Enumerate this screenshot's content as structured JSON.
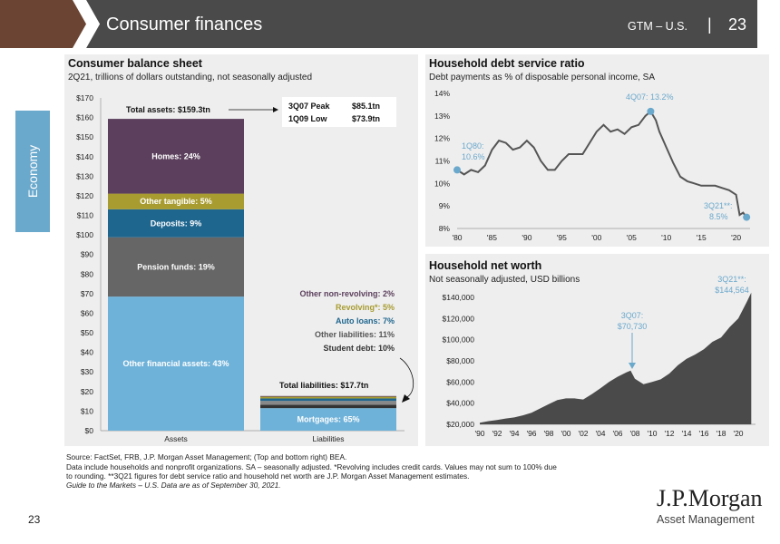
{
  "header": {
    "title": "Consumer finances",
    "series": "GTM – U.S.",
    "separator": "|",
    "page": "23"
  },
  "side_tab": "Economy",
  "colors": {
    "header_bg": "#4a4a4a",
    "header_accent": "#6b4433",
    "homes": "#5b3f5c",
    "other_tangible": "#a89c30",
    "deposits": "#1f668f",
    "pension": "#666666",
    "other_financial": "#6fb2d9",
    "line": "#555555",
    "marker": "#6aa8cc",
    "area": "#4a4a4a"
  },
  "balance": {
    "title": "Consumer balance sheet",
    "subtitle": "2Q21, trillions of dollars outstanding, not seasonally adjusted",
    "total_assets_label": "Total assets: $159.3tn",
    "total_liab_label": "Total liabilities: $17.7tn",
    "peak_label": "3Q07 Peak",
    "peak_value": "$85.1tn",
    "low_label": "1Q09 Low",
    "low_value": "$73.9tn",
    "liab_labels": [
      "Other non-revolving: 2%",
      "Revolving*: 5%",
      "Auto loans: 7%",
      "Other liabilities: 11%",
      "Student debt: 10%"
    ]
  },
  "debt": {
    "title": "Household debt service ratio",
    "subtitle": "Debt payments as % of disposable personal income, SA",
    "ann_1q80": "1Q80:",
    "ann_1q80_val": "10.6%",
    "ann_4q07": "4Q07: 13.2%",
    "ann_3q21": "3Q21**:",
    "ann_3q21_val": "8.5%"
  },
  "networth": {
    "title": "Household net worth",
    "subtitle": "Not seasonally adjusted, USD billions",
    "ann_3q07": "3Q07:",
    "ann_3q07_val": "$70,730",
    "ann_3q21": "3Q21**:",
    "ann_3q21_val": "$144,564"
  },
  "source": {
    "line1": "Source: FactSet, FRB, J.P. Morgan Asset Management; (Top and bottom right) BEA.",
    "line2": "Data include households and nonprofit organizations. SA – seasonally adjusted. *Revolving includes credit cards. Values may not sum to 100% due",
    "line3": "to rounding. **3Q21 figures for debt service ratio and household net worth are J.P. Morgan Asset Management estimates.",
    "line4": "Guide to the Markets – U.S. Data are as of September 30, 2021."
  },
  "logo": {
    "name": "J.P.Morgan",
    "sub": "Asset Management"
  },
  "footer_page": "23",
  "chart_data": [
    {
      "type": "bar",
      "title": "Consumer balance sheet",
      "subtitle": "2Q21, trillions of dollars outstanding, not seasonally adjusted",
      "categories": [
        "Assets",
        "Liabilities"
      ],
      "ylim": [
        0,
        170
      ],
      "yticks": [
        "$0",
        "$10",
        "$20",
        "$30",
        "$40",
        "$50",
        "$60",
        "$70",
        "$80",
        "$90",
        "$100",
        "$110",
        "$120",
        "$130",
        "$140",
        "$150",
        "$160",
        "$170"
      ],
      "assets": [
        {
          "name": "Other financial assets: 43%",
          "value": 68.5
        },
        {
          "name": "Pension funds: 19%",
          "value": 30.3
        },
        {
          "name": "Deposits: 9%",
          "value": 14.3
        },
        {
          "name": "Other tangible: 5%",
          "value": 8.0
        },
        {
          "name": "Homes: 24%",
          "value": 38.2
        }
      ],
      "liabilities": [
        {
          "name": "Mortgages: 65%",
          "value": 11.5
        },
        {
          "name": "Student debt: 10%",
          "value": 1.77
        },
        {
          "name": "Other liabilities: 11%",
          "value": 1.95
        },
        {
          "name": "Auto loans: 7%",
          "value": 1.24
        },
        {
          "name": "Revolving*: 5%",
          "value": 0.89
        },
        {
          "name": "Other non-revolving: 2%",
          "value": 0.35
        }
      ]
    },
    {
      "type": "line",
      "title": "Household debt service ratio",
      "subtitle": "Debt payments as % of disposable personal income, SA",
      "xlim": [
        1980,
        2022
      ],
      "ylim": [
        8,
        14
      ],
      "xticks": [
        "'80",
        "'85",
        "'90",
        "'95",
        "'00",
        "'05",
        "'10",
        "'15",
        "'20"
      ],
      "yticks": [
        "8%",
        "9%",
        "10%",
        "11%",
        "12%",
        "13%",
        "14%"
      ],
      "x": [
        1980,
        1981,
        1982,
        1983,
        1984,
        1985,
        1986,
        1987,
        1988,
        1989,
        1990,
        1991,
        1992,
        1993,
        1994,
        1995,
        1996,
        1997,
        1998,
        1999,
        2000,
        2001,
        2002,
        2003,
        2004,
        2005,
        2006,
        2007,
        2007.75,
        2008.5,
        2009,
        2010,
        2011,
        2012,
        2013,
        2014,
        2015,
        2016,
        2017,
        2018,
        2019,
        2020,
        2020.5,
        2021,
        2021.5
      ],
      "y": [
        10.6,
        10.4,
        10.6,
        10.5,
        10.8,
        11.5,
        11.9,
        11.8,
        11.5,
        11.6,
        11.9,
        11.6,
        11.0,
        10.6,
        10.6,
        11.0,
        11.3,
        11.3,
        11.3,
        11.8,
        12.3,
        12.6,
        12.3,
        12.4,
        12.2,
        12.5,
        12.6,
        13.0,
        13.2,
        12.8,
        12.3,
        11.6,
        10.9,
        10.3,
        10.1,
        10.0,
        9.9,
        9.9,
        9.9,
        9.8,
        9.7,
        9.5,
        8.6,
        8.7,
        8.5
      ],
      "markers": [
        {
          "x": 1980,
          "y": 10.6
        },
        {
          "x": 2007.75,
          "y": 13.2
        },
        {
          "x": 2021.5,
          "y": 8.5
        }
      ]
    },
    {
      "type": "area",
      "title": "Household net worth",
      "subtitle": "Not seasonally adjusted, USD billions",
      "xlim": [
        1990,
        2022
      ],
      "ylim": [
        20000,
        140000
      ],
      "xticks": [
        "'90",
        "'92",
        "'94",
        "'96",
        "'98",
        "'00",
        "'02",
        "'04",
        "'06",
        "'08",
        "'10",
        "'12",
        "'14",
        "'16",
        "'18",
        "'20"
      ],
      "yticks": [
        "$20,000",
        "$40,000",
        "$60,000",
        "$80,000",
        "$100,000",
        "$120,000",
        "$140,000"
      ],
      "x": [
        1990,
        1991,
        1992,
        1993,
        1994,
        1995,
        1996,
        1997,
        1998,
        1999,
        2000,
        2001,
        2002,
        2003,
        2004,
        2005,
        2006,
        2007,
        2007.5,
        2008,
        2009,
        2010,
        2011,
        2012,
        2013,
        2014,
        2015,
        2016,
        2017,
        2018,
        2019,
        2020,
        2021,
        2021.5
      ],
      "y": [
        21500,
        23000,
        24000,
        25500,
        26500,
        28500,
        31000,
        35000,
        39000,
        43000,
        44500,
        44500,
        43500,
        48500,
        54000,
        60000,
        65000,
        69000,
        70700,
        63000,
        58000,
        60000,
        62500,
        68000,
        76000,
        82000,
        86000,
        91000,
        98000,
        102000,
        112000,
        120000,
        136000,
        144564
      ]
    }
  ]
}
